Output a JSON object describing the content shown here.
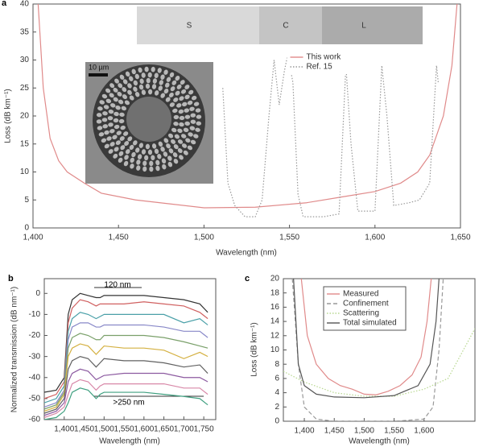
{
  "chart_data": [
    {
      "type": "line",
      "label": "a",
      "x_label": "Wavelength (nm)",
      "y_label": "Loss (dB km⁻¹)",
      "xlim": [
        1400,
        1650
      ],
      "ylim": [
        0,
        40
      ],
      "xticks": [
        {
          "value": 1400,
          "label": "1,400"
        },
        {
          "value": 1450,
          "label": "1,450"
        },
        {
          "value": 1500,
          "label": "1,500"
        },
        {
          "value": 1550,
          "label": "1,550"
        },
        {
          "value": 1600,
          "label": "1,600"
        },
        {
          "value": 1650,
          "label": "1,650"
        }
      ],
      "yticks": [
        0,
        5,
        10,
        15,
        20,
        25,
        30,
        35,
        40
      ],
      "bands": [
        "S",
        "C",
        "L"
      ],
      "inset_scale": "10 µm",
      "legend": "upper center",
      "series": [
        {
          "name": "This work",
          "color": "#e08a8a",
          "style": "solid",
          "x": [
            1403,
            1406,
            1410,
            1415,
            1420,
            1430,
            1440,
            1460,
            1480,
            1500,
            1530,
            1560,
            1580,
            1600,
            1615,
            1625,
            1632,
            1640,
            1645,
            1648
          ],
          "values": [
            40,
            25,
            16,
            12,
            10,
            8,
            6.2,
            5,
            4.3,
            3.6,
            3.7,
            4.5,
            5.5,
            6.5,
            8,
            10,
            13,
            20,
            29,
            40
          ]
        },
        {
          "name": "Ref. 15",
          "color": "#999999",
          "style": "dotted",
          "x": [
            1511,
            1514,
            1518,
            1524,
            1530,
            1534,
            1538,
            1541,
            1544,
            1547,
            1549,
            1552,
            1555,
            1558,
            1570,
            1579,
            1583,
            1586,
            1590,
            1600,
            1604,
            1607,
            1611,
            1620,
            1626,
            1632,
            1636,
            1637
          ],
          "values": [
            25,
            8,
            4,
            2,
            2,
            5,
            20,
            30,
            22,
            28,
            31,
            26,
            6,
            2,
            2,
            2.5,
            29,
            15,
            3,
            3,
            29,
            20,
            4,
            4.5,
            5,
            8,
            29,
            26
          ]
        }
      ]
    },
    {
      "type": "line",
      "label": "b",
      "x_label": "Wavelength (nm)",
      "y_label": "Normalized transmission (dB nm⁻¹)",
      "xlim": [
        1350,
        1780
      ],
      "ylim": [
        -60,
        7
      ],
      "xticks": [
        {
          "value": 1400,
          "label": "1,400"
        },
        {
          "value": 1450,
          "label": "1,450"
        },
        {
          "value": 1500,
          "label": "1,500"
        },
        {
          "value": 1550,
          "label": "1,550"
        },
        {
          "value": 1600,
          "label": "1,600"
        },
        {
          "value": 1650,
          "label": "1,650"
        },
        {
          "value": 1700,
          "label": "1,700"
        },
        {
          "value": 1750,
          "label": "1,750"
        }
      ],
      "yticks": [
        0,
        -10,
        -20,
        -30,
        -40,
        -50,
        -60
      ],
      "annotations": [
        "120 nm",
        ">250 nm"
      ],
      "x": [
        1350,
        1380,
        1400,
        1410,
        1420,
        1440,
        1460,
        1480,
        1490,
        1500,
        1550,
        1600,
        1650,
        1700,
        1740,
        1760
      ],
      "series": [
        {
          "color": "#333333",
          "values": [
            -47,
            -46,
            -40,
            -10,
            -3,
            0,
            -1,
            -2,
            -2,
            -1,
            -1,
            -1,
            -2,
            -3,
            -5,
            -9
          ]
        },
        {
          "color": "#d06060",
          "values": [
            -50,
            -48,
            -42,
            -14,
            -7,
            -3,
            -4,
            -6,
            -5,
            -5,
            -5,
            -4,
            -5,
            -6,
            -9,
            -12
          ]
        },
        {
          "color": "#4aa0a8",
          "values": [
            -52,
            -50,
            -44,
            -18,
            -12,
            -9,
            -10,
            -12,
            -11,
            -10,
            -10,
            -10,
            -10,
            -14,
            -12,
            -15
          ]
        },
        {
          "color": "#8888c8",
          "values": [
            -54,
            -52,
            -46,
            -22,
            -16,
            -14,
            -14,
            -16,
            -16,
            -15,
            -15,
            -15,
            -16,
            -18,
            -18,
            -21
          ]
        },
        {
          "color": "#7aa06a",
          "values": [
            -55,
            -53,
            -47,
            -26,
            -21,
            -19,
            -20,
            -22,
            -22,
            -20,
            -20,
            -20,
            -21,
            -23,
            -25,
            -26
          ]
        },
        {
          "color": "#d4b040",
          "values": [
            -56,
            -54,
            -48,
            -30,
            -26,
            -24,
            -25,
            -29,
            -27,
            -25,
            -26,
            -26,
            -27,
            -31,
            -28,
            -30
          ]
        },
        {
          "color": "#606060",
          "values": [
            -57,
            -55,
            -50,
            -36,
            -32,
            -30,
            -31,
            -35,
            -33,
            -31,
            -32,
            -32,
            -33,
            -35,
            -34,
            -38
          ]
        },
        {
          "color": "#8c5aa0",
          "values": [
            -58,
            -56,
            -52,
            -42,
            -38,
            -36,
            -37,
            -41,
            -40,
            -39,
            -38,
            -38,
            -38,
            -40,
            -40,
            -42
          ]
        },
        {
          "color": "#d888a8",
          "values": [
            -59,
            -57,
            -54,
            -48,
            -43,
            -41,
            -42,
            -46,
            -44,
            -43,
            -43,
            -43,
            -43,
            -45,
            -45,
            -48
          ]
        },
        {
          "color": "#40a080",
          "values": [
            -60,
            -59,
            -56,
            -52,
            -47,
            -45,
            -46,
            -50,
            -48,
            -47,
            -47,
            -47,
            -48,
            -49,
            -50,
            -53
          ]
        }
      ]
    },
    {
      "type": "line",
      "label": "c",
      "x_label": "Wavelength (nm)",
      "y_label": "Loss (dB km⁻¹)",
      "xlim": [
        1365,
        1685
      ],
      "ylim": [
        0,
        20
      ],
      "xticks": [
        {
          "value": 1400,
          "label": "1,400"
        },
        {
          "value": 1450,
          "label": "1,450"
        },
        {
          "value": 1500,
          "label": "1,500"
        },
        {
          "value": 1550,
          "label": "1,550"
        },
        {
          "value": 1600,
          "label": "1,600"
        }
      ],
      "yticks": [
        0,
        2,
        4,
        6,
        8,
        10,
        12,
        14,
        16,
        18,
        20
      ],
      "legend": "upper left",
      "series": [
        {
          "name": "Measured",
          "color": "#e08a8a",
          "style": "solid",
          "x": [
            1395,
            1405,
            1420,
            1440,
            1460,
            1480,
            1500,
            1520,
            1540,
            1560,
            1580,
            1595,
            1605,
            1612
          ],
          "values": [
            20,
            12,
            8,
            6,
            5,
            4.5,
            3.8,
            3.7,
            4.2,
            5,
            6.5,
            9,
            14,
            20
          ]
        },
        {
          "name": "Confinement",
          "color": "#999999",
          "style": "dashed",
          "x": [
            1380,
            1390,
            1400,
            1420,
            1450,
            1500,
            1550,
            1600,
            1615,
            1625,
            1632
          ],
          "values": [
            20,
            8,
            2,
            0.3,
            0,
            0,
            0,
            0.3,
            2,
            10,
            20
          ]
        },
        {
          "name": "Scattering",
          "color": "#b8d890",
          "style": "dotted",
          "x": [
            1365,
            1400,
            1450,
            1500,
            1550,
            1600,
            1640,
            1685
          ],
          "values": [
            7,
            5.5,
            4,
            3.5,
            3.5,
            4.5,
            6,
            13
          ]
        },
        {
          "name": "Total simulated",
          "color": "#555555",
          "style": "solid",
          "x": [
            1382,
            1390,
            1400,
            1420,
            1450,
            1500,
            1550,
            1590,
            1610,
            1620,
            1625
          ],
          "values": [
            20,
            8,
            5,
            3.8,
            3.4,
            3.3,
            3.6,
            5,
            8,
            14,
            20
          ]
        }
      ]
    }
  ]
}
